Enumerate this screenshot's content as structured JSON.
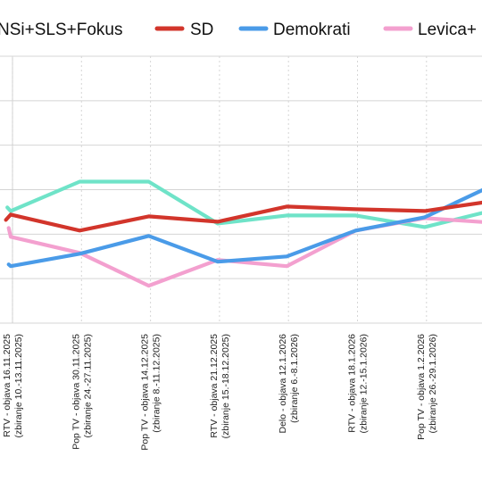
{
  "chart_data": {
    "type": "line",
    "title": "",
    "xlabel": "",
    "ylabel": "",
    "grid": true,
    "legend_placement": "top",
    "legend": [
      {
        "name": "NSi+SLS+Fokus",
        "color": "#6fe3c8",
        "visible_label": "NSi+SLS+Fokus"
      },
      {
        "name": "SD",
        "color": "#d2352b",
        "visible_label": "SD"
      },
      {
        "name": "Demokrati",
        "color": "#4a9be8",
        "visible_label": "Demokrati"
      },
      {
        "name": "Levica+Vesna",
        "color": "#f3a0cf",
        "visible_label": "Levica+"
      }
    ],
    "categories": [
      [
        "RTV - objava 16.11.2025",
        "(zbiranje 10.-13.11.2025)"
      ],
      [
        "Pop TV - objava 30.11.2025",
        "(zbiranje 24.-27.11.2025)"
      ],
      [
        "Pop TV - objava 14.12.2025",
        "(zbiranje 8.-11.12.2025)"
      ],
      [
        "RTV - objava 21.12.2025",
        "(zbiranje 15.-18.12.2025)"
      ],
      [
        "Delo - objava 12.1.2026",
        "(zbiranje 6.-8.1.2026)"
      ],
      [
        "RTV - objava 18.1.2026",
        "(zbiranje 12.-15.1.2026)"
      ],
      [
        "Pop TV - objava 1.2.2026",
        "(zbiranje 26.-29.1.2026)"
      ]
    ],
    "yrange": [
      0,
      6
    ],
    "series": [
      {
        "name": "NSi+SLS+Fokus",
        "color": "#6fe3c8",
        "lead": [
          0.08,
          2.6
        ],
        "values": [
          2.52,
          3.18,
          3.18,
          2.24,
          2.42,
          2.42,
          2.16
        ],
        "tail": [
          1.12,
          2.6
        ]
      },
      {
        "name": "SD",
        "color": "#d2352b",
        "lead": [
          0.06,
          2.32
        ],
        "values": [
          2.44,
          2.08,
          2.4,
          2.28,
          2.62,
          2.56,
          2.52
        ],
        "tail": [
          1.1,
          2.78
        ]
      },
      {
        "name": "Demokrati",
        "color": "#4a9be8",
        "lead": [
          0.1,
          1.32
        ],
        "values": [
          1.28,
          1.56,
          1.96,
          1.38,
          1.5,
          2.08,
          2.38
        ],
        "tail": [
          1.14,
          3.24
        ]
      },
      {
        "name": "Levica+Vesna",
        "color": "#f3a0cf",
        "lead": [
          0.1,
          2.14
        ],
        "values": [
          1.94,
          1.58,
          0.84,
          1.42,
          1.28,
          2.08,
          2.36
        ],
        "tail": [
          1.12,
          2.24
        ]
      }
    ]
  }
}
